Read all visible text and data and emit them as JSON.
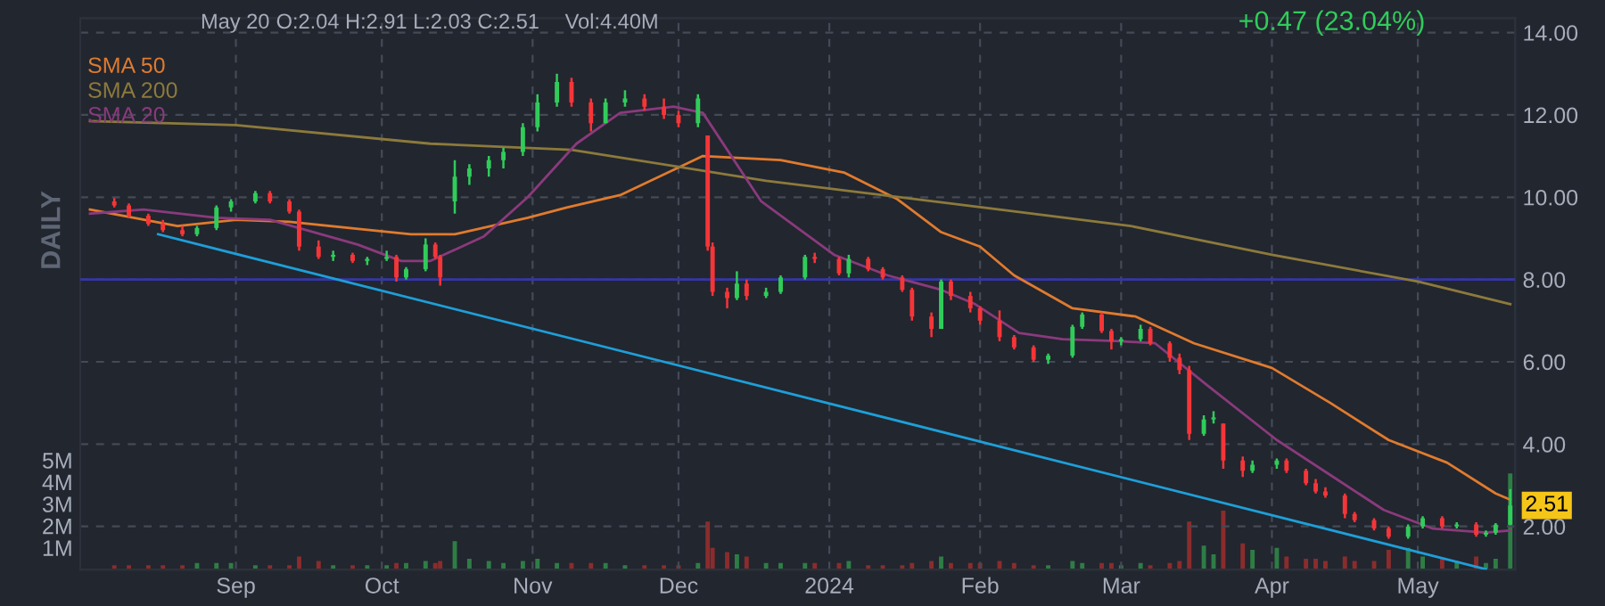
{
  "chart_data": {
    "type": "candlestick",
    "annotations": [
      "May 20",
      "O:2.04 H:2.91 L:2.03 C:2.51",
      "Vol:4.40M",
      "+0.47 (23.04%)",
      "DAILY",
      {
        "text": "2.51",
        "x": "2024-05-20",
        "y": 2.51
      }
    ],
    "x": [
      "2023-08-07",
      "2023-08-10",
      "2023-08-14",
      "2023-08-17",
      "2023-08-21",
      "2023-08-24",
      "2023-08-28",
      "2023-08-31",
      "2023-09-05",
      "2023-09-08",
      "2023-09-12",
      "2023-09-14",
      "2023-09-18",
      "2023-09-21",
      "2023-09-25",
      "2023-09-28",
      "2023-10-02",
      "2023-10-04",
      "2023-10-06",
      "2023-10-10",
      "2023-10-12",
      "2023-10-13",
      "2023-10-16",
      "2023-10-19",
      "2023-10-23",
      "2023-10-26",
      "2023-10-30",
      "2023-11-02",
      "2023-11-06",
      "2023-11-09",
      "2023-11-13",
      "2023-11-16",
      "2023-11-20",
      "2023-11-24",
      "2023-11-28",
      "2023-12-01",
      "2023-12-05",
      "2023-12-07",
      "2023-12-08",
      "2023-12-11",
      "2023-12-13",
      "2023-12-15",
      "2023-12-19",
      "2023-12-22",
      "2023-12-27",
      "2023-12-29",
      "2024-01-03",
      "2024-01-05",
      "2024-01-09",
      "2024-01-12",
      "2024-01-16",
      "2024-01-18",
      "2024-01-22",
      "2024-01-24",
      "2024-01-26",
      "2024-01-30",
      "2024-02-01",
      "2024-02-05",
      "2024-02-08",
      "2024-02-12",
      "2024-02-15",
      "2024-02-20",
      "2024-02-22",
      "2024-02-26",
      "2024-02-28",
      "2024-03-01",
      "2024-03-05",
      "2024-03-07",
      "2024-03-11",
      "2024-03-13",
      "2024-03-15",
      "2024-03-18",
      "2024-03-20",
      "2024-03-22",
      "2024-03-26",
      "2024-03-28",
      "2024-04-02",
      "2024-04-04",
      "2024-04-08",
      "2024-04-10",
      "2024-04-12",
      "2024-04-16",
      "2024-04-18",
      "2024-04-22",
      "2024-04-25",
      "2024-04-29",
      "2024-05-02",
      "2024-05-06",
      "2024-05-09",
      "2024-05-13",
      "2024-05-15",
      "2024-05-17",
      "2024-05-20"
    ],
    "ohlc": [
      [
        9.9,
        9.98,
        9.75,
        9.8
      ],
      [
        9.8,
        9.85,
        9.5,
        9.55
      ],
      [
        9.55,
        9.6,
        9.3,
        9.35
      ],
      [
        9.35,
        9.45,
        9.15,
        9.2
      ],
      [
        9.2,
        9.3,
        9.05,
        9.1
      ],
      [
        9.1,
        9.3,
        9.05,
        9.25
      ],
      [
        9.25,
        9.8,
        9.2,
        9.75
      ],
      [
        9.75,
        9.95,
        9.65,
        9.9
      ],
      [
        9.9,
        10.15,
        9.85,
        10.1
      ],
      [
        10.1,
        10.15,
        9.85,
        9.9
      ],
      [
        9.9,
        9.95,
        9.6,
        9.65
      ],
      [
        9.65,
        9.7,
        8.7,
        8.8
      ],
      [
        8.8,
        8.95,
        8.5,
        8.55
      ],
      [
        8.55,
        8.7,
        8.45,
        8.6
      ],
      [
        8.6,
        8.65,
        8.4,
        8.45
      ],
      [
        8.45,
        8.55,
        8.35,
        8.5
      ],
      [
        8.5,
        8.7,
        8.45,
        8.55
      ],
      [
        8.55,
        8.6,
        7.95,
        8.05
      ],
      [
        8.05,
        8.3,
        8.0,
        8.25
      ],
      [
        8.25,
        9.0,
        8.2,
        8.85
      ],
      [
        8.85,
        8.9,
        8.5,
        8.55
      ],
      [
        8.55,
        8.6,
        7.85,
        8.05
      ],
      [
        9.9,
        10.9,
        9.6,
        10.5
      ],
      [
        10.5,
        10.8,
        10.3,
        10.7
      ],
      [
        10.7,
        11.0,
        10.5,
        10.9
      ],
      [
        10.9,
        11.2,
        10.7,
        11.1
      ],
      [
        11.1,
        11.8,
        11.0,
        11.7
      ],
      [
        11.7,
        12.5,
        11.6,
        12.3
      ],
      [
        12.3,
        13.0,
        12.2,
        12.8
      ],
      [
        12.8,
        12.9,
        12.2,
        12.3
      ],
      [
        12.3,
        12.4,
        11.6,
        11.8
      ],
      [
        11.8,
        12.4,
        11.8,
        12.3
      ],
      [
        12.3,
        12.6,
        12.2,
        12.4
      ],
      [
        12.4,
        12.5,
        12.1,
        12.2
      ],
      [
        12.2,
        12.4,
        11.9,
        12.0
      ],
      [
        12.0,
        12.1,
        11.7,
        11.8
      ],
      [
        11.8,
        12.5,
        11.7,
        12.4
      ],
      [
        11.5,
        11.5,
        8.7,
        8.8
      ],
      [
        8.8,
        8.9,
        7.6,
        7.7
      ],
      [
        7.7,
        7.8,
        7.3,
        7.55
      ],
      [
        7.55,
        8.2,
        7.5,
        7.9
      ],
      [
        7.9,
        8.0,
        7.5,
        7.6
      ],
      [
        7.6,
        7.8,
        7.55,
        7.7
      ],
      [
        7.7,
        8.1,
        7.65,
        8.05
      ],
      [
        8.05,
        8.6,
        8.0,
        8.55
      ],
      [
        8.55,
        8.65,
        8.4,
        8.5
      ],
      [
        8.5,
        8.55,
        8.1,
        8.15
      ],
      [
        8.15,
        8.6,
        8.05,
        8.5
      ],
      [
        8.5,
        8.55,
        8.2,
        8.25
      ],
      [
        8.25,
        8.3,
        8.0,
        8.05
      ],
      [
        8.05,
        8.1,
        7.7,
        7.75
      ],
      [
        7.75,
        7.8,
        7.0,
        7.1
      ],
      [
        7.1,
        7.2,
        6.6,
        6.8
      ],
      [
        6.8,
        8.0,
        6.8,
        7.95
      ],
      [
        7.95,
        8.0,
        7.5,
        7.6
      ],
      [
        7.6,
        7.7,
        7.2,
        7.3
      ],
      [
        7.3,
        7.35,
        6.9,
        7.0
      ],
      [
        7.0,
        7.25,
        6.5,
        6.6
      ],
      [
        6.6,
        6.65,
        6.3,
        6.35
      ],
      [
        6.35,
        6.4,
        6.0,
        6.05
      ],
      [
        6.05,
        6.2,
        5.95,
        6.15
      ],
      [
        6.15,
        6.9,
        6.1,
        6.85
      ],
      [
        6.85,
        7.2,
        6.8,
        7.15
      ],
      [
        7.15,
        7.2,
        6.7,
        6.75
      ],
      [
        6.75,
        6.8,
        6.3,
        6.5
      ],
      [
        6.5,
        6.6,
        6.4,
        6.55
      ],
      [
        6.55,
        6.9,
        6.5,
        6.8
      ],
      [
        6.8,
        6.85,
        6.4,
        6.45
      ],
      [
        6.45,
        6.5,
        6.0,
        6.1
      ],
      [
        6.1,
        6.2,
        5.7,
        5.8
      ],
      [
        5.8,
        5.9,
        4.1,
        4.25
      ],
      [
        4.25,
        4.7,
        4.2,
        4.6
      ],
      [
        4.6,
        4.8,
        4.5,
        4.65
      ],
      [
        4.5,
        4.5,
        3.4,
        3.6
      ],
      [
        3.6,
        3.7,
        3.2,
        3.35
      ],
      [
        3.35,
        3.6,
        3.3,
        3.5
      ],
      [
        3.5,
        3.65,
        3.4,
        3.6
      ],
      [
        3.6,
        3.65,
        3.3,
        3.35
      ],
      [
        3.35,
        3.4,
        3.0,
        3.05
      ],
      [
        3.05,
        3.15,
        2.8,
        2.85
      ],
      [
        2.85,
        2.95,
        2.7,
        2.75
      ],
      [
        2.75,
        2.8,
        2.2,
        2.3
      ],
      [
        2.3,
        2.35,
        2.1,
        2.15
      ],
      [
        2.15,
        2.2,
        1.9,
        1.95
      ],
      [
        1.95,
        2.0,
        1.7,
        1.75
      ],
      [
        1.75,
        2.05,
        1.7,
        2.0
      ],
      [
        2.0,
        2.25,
        1.95,
        2.2
      ],
      [
        2.2,
        2.25,
        1.95,
        2.0
      ],
      [
        2.0,
        2.1,
        1.95,
        2.05
      ],
      [
        2.05,
        2.1,
        1.75,
        1.8
      ],
      [
        1.8,
        1.9,
        1.75,
        1.85
      ],
      [
        1.85,
        2.08,
        1.8,
        2.04
      ],
      [
        2.04,
        2.91,
        2.03,
        2.51
      ]
    ],
    "colors": [
      "#f63538",
      "#f63538",
      "#f63538",
      "#f63538",
      "#f63538",
      "#30cc5a",
      "#30cc5a",
      "#30cc5a",
      "#30cc5a",
      "#f63538",
      "#f63538",
      "#f63538",
      "#f63538",
      "#30cc5a",
      "#f63538",
      "#30cc5a",
      "#30cc5a",
      "#f63538",
      "#30cc5a",
      "#30cc5a",
      "#f63538",
      "#f63538",
      "#30cc5a",
      "#30cc5a",
      "#30cc5a",
      "#30cc5a",
      "#30cc5a",
      "#30cc5a",
      "#30cc5a",
      "#f63538",
      "#f63538",
      "#30cc5a",
      "#30cc5a",
      "#f63538",
      "#f63538",
      "#f63538",
      "#30cc5a",
      "#f63538",
      "#f63538",
      "#f63538",
      "#30cc5a",
      "#f63538",
      "#30cc5a",
      "#30cc5a",
      "#30cc5a",
      "#f63538",
      "#f63538",
      "#30cc5a",
      "#f63538",
      "#f63538",
      "#f63538",
      "#f63538",
      "#f63538",
      "#30cc5a",
      "#f63538",
      "#f63538",
      "#f63538",
      "#f63538",
      "#f63538",
      "#f63538",
      "#30cc5a",
      "#30cc5a",
      "#30cc5a",
      "#f63538",
      "#f63538",
      "#30cc5a",
      "#30cc5a",
      "#f63538",
      "#f63538",
      "#f63538",
      "#f63538",
      "#30cc5a",
      "#30cc5a",
      "#f63538",
      "#f63538",
      "#30cc5a",
      "#30cc5a",
      "#f63538",
      "#f63538",
      "#f63538",
      "#f63538",
      "#f63538",
      "#f63538",
      "#f63538",
      "#f63538",
      "#30cc5a",
      "#30cc5a",
      "#f63538",
      "#30cc5a",
      "#f63538",
      "#30cc5a",
      "#30cc5a",
      "#30cc5a"
    ],
    "series": [
      {
        "name": "SMA 50",
        "type": "line",
        "color": "#e07b2e",
        "x": [
          "2023-08-02",
          "2023-08-20",
          "2023-09-01",
          "2023-09-12",
          "2023-10-07",
          "2023-10-16",
          "2023-10-31",
          "2023-11-08",
          "2023-11-19",
          "2023-12-06",
          "2023-12-22",
          "2024-01-04",
          "2024-01-15",
          "2024-01-24",
          "2024-02-01",
          "2024-02-08",
          "2024-02-20",
          "2024-03-04",
          "2024-03-16",
          "2024-04-01",
          "2024-04-13",
          "2024-04-25",
          "2024-05-07",
          "2024-05-17",
          "2024-05-20"
        ],
        "values": [
          9.7,
          9.3,
          9.45,
          9.4,
          9.1,
          9.1,
          9.5,
          9.75,
          10.05,
          11.0,
          10.9,
          10.6,
          9.95,
          9.15,
          8.8,
          8.1,
          7.3,
          7.1,
          6.45,
          5.85,
          5.0,
          4.1,
          3.55,
          2.8,
          2.65
        ]
      },
      {
        "name": "SMA 200",
        "type": "line",
        "color": "#8c7a3c",
        "x": [
          "2023-08-02",
          "2023-09-01",
          "2023-10-11",
          "2023-11-09",
          "2023-12-19",
          "2024-02-05",
          "2024-03-03",
          "2024-04-01",
          "2024-05-01",
          "2024-05-20"
        ],
        "values": [
          11.85,
          11.75,
          11.3,
          11.15,
          10.4,
          9.7,
          9.3,
          8.6,
          7.95,
          7.4
        ]
      },
      {
        "name": "SMA 20",
        "type": "line",
        "color": "#8a3a7c",
        "x": [
          "2023-08-02",
          "2023-08-13",
          "2023-08-28",
          "2023-09-08",
          "2023-09-26",
          "2023-10-05",
          "2023-10-11",
          "2023-10-22",
          "2023-10-31",
          "2023-11-10",
          "2023-11-19",
          "2023-11-30",
          "2023-12-06",
          "2023-12-18",
          "2024-01-02",
          "2024-01-13",
          "2024-01-24",
          "2024-01-31",
          "2024-02-09",
          "2024-02-18",
          "2024-03-01",
          "2024-03-08",
          "2024-03-19",
          "2024-04-02",
          "2024-04-13",
          "2024-04-24",
          "2024-05-04",
          "2024-05-15",
          "2024-05-20"
        ],
        "values": [
          9.6,
          9.7,
          9.5,
          9.45,
          8.85,
          8.45,
          8.45,
          9.05,
          10.0,
          11.3,
          12.05,
          12.2,
          12.05,
          9.9,
          8.6,
          8.1,
          7.75,
          7.4,
          6.7,
          6.55,
          6.5,
          6.45,
          5.4,
          4.1,
          3.25,
          2.4,
          1.95,
          1.85,
          1.9
        ]
      },
      {
        "type": "line",
        "color": "#1e9fd8",
        "x": [
          "2023-08-16",
          "2024-05-15"
        ],
        "values": [
          9.1,
          0.96
        ]
      },
      {
        "type": "bar",
        "axis": "y2",
        "values": [
          0.2,
          0.2,
          0.2,
          0.2,
          0.2,
          0.3,
          0.3,
          0.3,
          0.2,
          0.2,
          0.2,
          0.6,
          0.4,
          0.2,
          0.2,
          0.2,
          0.2,
          0.3,
          0.3,
          0.4,
          0.3,
          0.4,
          1.3,
          0.5,
          0.4,
          0.3,
          0.4,
          0.5,
          0.3,
          0.3,
          0.3,
          0.3,
          0.2,
          0.2,
          0.2,
          0.2,
          0.3,
          2.2,
          1.0,
          0.8,
          0.7,
          0.6,
          0.3,
          0.3,
          0.3,
          0.3,
          0.3,
          0.4,
          0.2,
          0.2,
          0.2,
          0.3,
          0.4,
          0.6,
          0.3,
          0.3,
          0.3,
          0.4,
          0.3,
          0.2,
          0.2,
          0.4,
          0.3,
          0.3,
          0.3,
          0.2,
          0.3,
          0.2,
          0.3,
          0.4,
          2.2,
          1.1,
          0.7,
          2.7,
          1.2,
          0.9,
          1.0,
          0.6,
          0.5,
          0.5,
          0.4,
          0.6,
          0.4,
          0.4,
          0.9,
          1.0,
          0.6,
          0.5,
          0.4,
          0.6,
          0.3,
          0.5,
          4.4
        ],
        "colors": [
          "#8b2c2c",
          "#8b2c2c",
          "#8b2c2c",
          "#8b2c2c",
          "#8b2c2c",
          "#2e7d45",
          "#2e7d45",
          "#2e7d45",
          "#2e7d45",
          "#8b2c2c",
          "#8b2c2c",
          "#8b2c2c",
          "#8b2c2c",
          "#2e7d45",
          "#8b2c2c",
          "#2e7d45",
          "#2e7d45",
          "#8b2c2c",
          "#2e7d45",
          "#2e7d45",
          "#8b2c2c",
          "#8b2c2c",
          "#2e7d45",
          "#2e7d45",
          "#2e7d45",
          "#2e7d45",
          "#2e7d45",
          "#2e7d45",
          "#2e7d45",
          "#8b2c2c",
          "#8b2c2c",
          "#2e7d45",
          "#2e7d45",
          "#8b2c2c",
          "#8b2c2c",
          "#8b2c2c",
          "#2e7d45",
          "#8b2c2c",
          "#8b2c2c",
          "#8b2c2c",
          "#2e7d45",
          "#8b2c2c",
          "#2e7d45",
          "#2e7d45",
          "#2e7d45",
          "#8b2c2c",
          "#8b2c2c",
          "#2e7d45",
          "#8b2c2c",
          "#8b2c2c",
          "#8b2c2c",
          "#8b2c2c",
          "#8b2c2c",
          "#2e7d45",
          "#8b2c2c",
          "#8b2c2c",
          "#8b2c2c",
          "#8b2c2c",
          "#8b2c2c",
          "#8b2c2c",
          "#2e7d45",
          "#2e7d45",
          "#2e7d45",
          "#8b2c2c",
          "#8b2c2c",
          "#2e7d45",
          "#2e7d45",
          "#8b2c2c",
          "#8b2c2c",
          "#8b2c2c",
          "#8b2c2c",
          "#2e7d45",
          "#2e7d45",
          "#8b2c2c",
          "#8b2c2c",
          "#2e7d45",
          "#2e7d45",
          "#8b2c2c",
          "#8b2c2c",
          "#8b2c2c",
          "#8b2c2c",
          "#8b2c2c",
          "#8b2c2c",
          "#8b2c2c",
          "#8b2c2c",
          "#2e7d45",
          "#2e7d45",
          "#8b2c2c",
          "#2e7d45",
          "#8b2c2c",
          "#2e7d45",
          "#2e7d45",
          "#2e7d45"
        ]
      }
    ],
    "ref_lines": [
      {
        "axis": "y",
        "value": 8,
        "color": "#3535a8"
      }
    ],
    "xlim": [
      "2023-07-31",
      "2024-05-21"
    ],
    "xticks": [
      {
        "value": "2023-09-01",
        "label": "Sep"
      },
      {
        "value": "2023-10-01",
        "label": "Oct"
      },
      {
        "value": "2023-11-01",
        "label": "Nov"
      },
      {
        "value": "2023-12-01",
        "label": "Dec"
      },
      {
        "value": "2024-01-01",
        "label": "2024"
      },
      {
        "value": "2024-02-01",
        "label": "Feb"
      },
      {
        "value": "2024-03-01",
        "label": "Mar"
      },
      {
        "value": "2024-04-01",
        "label": "Apr"
      },
      {
        "value": "2024-05-01",
        "label": "May"
      }
    ],
    "ylim": [
      0.95,
      14.35
    ],
    "yticks": [
      {
        "value": 2,
        "label": "2.00"
      },
      {
        "value": 4,
        "label": "4.00"
      },
      {
        "value": 6,
        "label": "6.00"
      },
      {
        "value": 8,
        "label": "8.00"
      },
      {
        "value": 10,
        "label": "10.00"
      },
      {
        "value": 12,
        "label": "12.00"
      },
      {
        "value": 14,
        "label": "14.00"
      }
    ],
    "y2lim": [
      0,
      25.2
    ],
    "y2ticks": [
      {
        "value": 1,
        "label": "1M"
      },
      {
        "value": 2,
        "label": "2M"
      },
      {
        "value": 3,
        "label": "3M"
      },
      {
        "value": 4,
        "label": "4M"
      },
      {
        "value": 5,
        "label": "5M"
      }
    ],
    "grid": true,
    "legend": "top left"
  }
}
